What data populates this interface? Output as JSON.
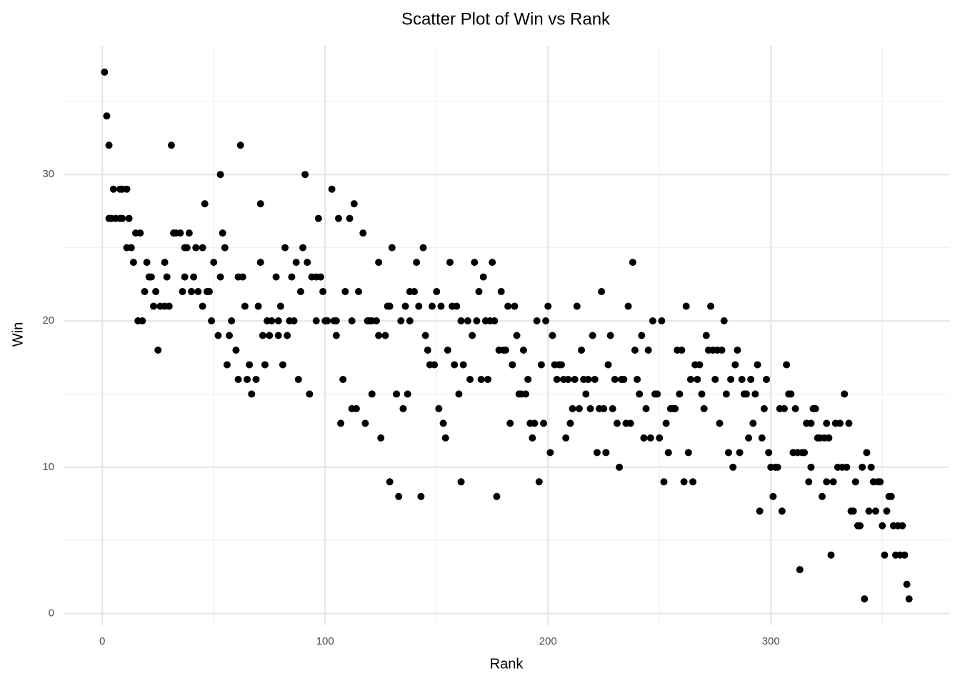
{
  "chart_data": {
    "type": "scatter",
    "title": "Scatter Plot of Win vs Rank",
    "x_label": "Rank",
    "y_label": "Win",
    "color": "#000000",
    "grid": true,
    "xlim": [
      -17.05,
      380.05
    ],
    "ylim": [
      -0.8,
      38.8
    ],
    "xticks": [
      0,
      100,
      200,
      300
    ],
    "yticks": [
      0,
      10,
      20,
      30
    ],
    "xminor": [
      50,
      150,
      250,
      350
    ],
    "yminor": [
      5,
      15,
      25,
      35
    ],
    "x": [
      1,
      2,
      3,
      3,
      4,
      5,
      6,
      8,
      8,
      9,
      9,
      11,
      11,
      12,
      13,
      14,
      15,
      16,
      17,
      18,
      19,
      20,
      21,
      22,
      23,
      24,
      25,
      26,
      28,
      28,
      29,
      30,
      31,
      32,
      33,
      35,
      36,
      37,
      37,
      38,
      39,
      40,
      41,
      42,
      43,
      45,
      45,
      46,
      47,
      48,
      49,
      50,
      52,
      53,
      53,
      54,
      55,
      56,
      57,
      58,
      60,
      61,
      61,
      62,
      63,
      64,
      65,
      66,
      67,
      69,
      70,
      71,
      71,
      72,
      73,
      74,
      75,
      76,
      78,
      79,
      79,
      80,
      81,
      82,
      83,
      84,
      85,
      86,
      87,
      88,
      89,
      90,
      91,
      92,
      93,
      94,
      96,
      96,
      97,
      98,
      99,
      100,
      101,
      103,
      104,
      105,
      105,
      106,
      107,
      108,
      109,
      111,
      112,
      112,
      113,
      114,
      115,
      117,
      118,
      119,
      120,
      121,
      121,
      123,
      124,
      124,
      125,
      127,
      128,
      129,
      129,
      130,
      132,
      133,
      134,
      135,
      136,
      137,
      138,
      138,
      140,
      141,
      142,
      143,
      144,
      145,
      146,
      147,
      148,
      149,
      150,
      151,
      152,
      153,
      154,
      155,
      156,
      157,
      158,
      159,
      160,
      161,
      161,
      162,
      164,
      165,
      166,
      167,
      168,
      169,
      170,
      171,
      172,
      173,
      174,
      175,
      176,
      177,
      178,
      179,
      180,
      181,
      182,
      183,
      184,
      185,
      186,
      187,
      188,
      189,
      190,
      191,
      192,
      193,
      194,
      195,
      196,
      197,
      198,
      199,
      200,
      201,
      202,
      203,
      204,
      205,
      206,
      207,
      208,
      209,
      210,
      211,
      212,
      213,
      214,
      215,
      216,
      217,
      218,
      219,
      220,
      221,
      222,
      223,
      224,
      225,
      226,
      227,
      228,
      229,
      230,
      231,
      232,
      233,
      234,
      235,
      236,
      237,
      238,
      239,
      240,
      241,
      242,
      243,
      244,
      245,
      246,
      247,
      248,
      249,
      250,
      251,
      252,
      253,
      254,
      255,
      256,
      257,
      258,
      259,
      260,
      261,
      262,
      263,
      264,
      265,
      266,
      267,
      268,
      269,
      270,
      271,
      272,
      273,
      274,
      275,
      276,
      277,
      278,
      279,
      280,
      281,
      282,
      283,
      284,
      285,
      286,
      287,
      288,
      289,
      290,
      291,
      292,
      293,
      294,
      295,
      296,
      297,
      298,
      299,
      300,
      301,
      302,
      303,
      304,
      305,
      306,
      307,
      308,
      309,
      310,
      311,
      312,
      313,
      314,
      315,
      316,
      317,
      318,
      318,
      319,
      320,
      321,
      322,
      323,
      324,
      325,
      325,
      326,
      327,
      328,
      329,
      330,
      331,
      332,
      333,
      334,
      335,
      336,
      337,
      338,
      339,
      340,
      341,
      342,
      343,
      344,
      345,
      346,
      347,
      348,
      349,
      350,
      351,
      352,
      353,
      354,
      355,
      356,
      357,
      358,
      359,
      360,
      361,
      362
    ],
    "values": [
      37,
      34,
      32,
      27,
      27,
      29,
      27,
      29,
      27,
      27,
      29,
      29,
      25,
      27,
      25,
      24,
      26,
      20,
      26,
      20,
      22,
      24,
      23,
      23,
      21,
      22,
      18,
      21,
      21,
      24,
      23,
      21,
      32,
      26,
      26,
      26,
      22,
      23,
      25,
      25,
      26,
      22,
      23,
      25,
      22,
      21,
      25,
      28,
      22,
      22,
      20,
      24,
      19,
      23,
      30,
      26,
      25,
      17,
      19,
      20,
      18,
      16,
      23,
      32,
      23,
      21,
      16,
      17,
      15,
      16,
      21,
      28,
      24,
      19,
      17,
      20,
      19,
      20,
      23,
      20,
      19,
      21,
      17,
      25,
      19,
      20,
      23,
      20,
      24,
      16,
      22,
      25,
      30,
      24,
      15,
      23,
      20,
      23,
      27,
      23,
      22,
      20,
      20,
      29,
      20,
      20,
      19,
      27,
      13,
      16,
      22,
      27,
      14,
      20,
      28,
      14,
      22,
      26,
      13,
      20,
      20,
      15,
      20,
      20,
      24,
      19,
      12,
      19,
      21,
      21,
      9,
      25,
      15,
      8,
      20,
      14,
      21,
      15,
      22,
      20,
      22,
      24,
      21,
      8,
      25,
      19,
      18,
      17,
      21,
      17,
      22,
      14,
      21,
      13,
      12,
      18,
      24,
      21,
      17,
      21,
      15,
      9,
      20,
      17,
      20,
      16,
      19,
      24,
      20,
      22,
      16,
      23,
      20,
      16,
      20,
      24,
      20,
      8,
      18,
      22,
      18,
      18,
      21,
      13,
      17,
      21,
      19,
      15,
      15,
      18,
      15,
      16,
      13,
      12,
      13,
      20,
      9,
      17,
      13,
      20,
      21,
      11,
      19,
      17,
      16,
      17,
      17,
      16,
      12,
      16,
      13,
      14,
      16,
      21,
      14,
      18,
      16,
      15,
      16,
      14,
      19,
      16,
      11,
      14,
      22,
      14,
      11,
      17,
      19,
      14,
      16,
      13,
      10,
      16,
      16,
      13,
      21,
      13,
      24,
      18,
      16,
      15,
      19,
      12,
      14,
      18,
      12,
      20,
      15,
      15,
      12,
      20,
      9,
      13,
      11,
      14,
      14,
      14,
      18,
      15,
      18,
      9,
      21,
      11,
      16,
      9,
      17,
      16,
      17,
      15,
      14,
      19,
      18,
      21,
      18,
      16,
      18,
      13,
      18,
      20,
      15,
      11,
      16,
      10,
      17,
      18,
      11,
      16,
      15,
      15,
      12,
      16,
      13,
      15,
      17,
      7,
      12,
      14,
      16,
      11,
      10,
      8,
      10,
      10,
      14,
      7,
      14,
      17,
      15,
      15,
      11,
      14,
      11,
      3,
      11,
      11,
      13,
      9,
      13,
      10,
      14,
      14,
      12,
      12,
      8,
      12,
      9,
      13,
      12,
      4,
      9,
      13,
      10,
      13,
      10,
      15,
      10,
      13,
      7,
      7,
      9,
      6,
      6,
      10,
      1,
      11,
      7,
      10,
      9,
      7,
      9,
      9,
      6,
      4,
      7,
      8,
      8,
      6,
      4,
      6,
      4,
      6,
      4,
      2,
      1
    ]
  }
}
